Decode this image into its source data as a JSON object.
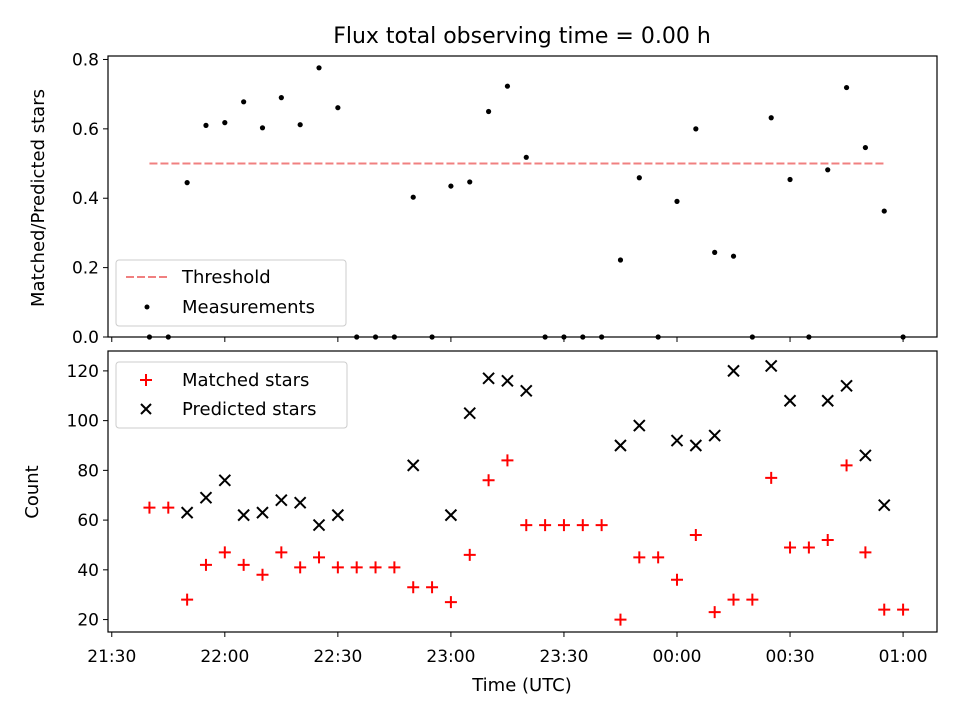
{
  "figure": {
    "title": "Flux total observing time = 0.00 h"
  },
  "colors": {
    "threshold": "#f08080",
    "measurements": "#000000",
    "matched": "#ff0000",
    "predicted": "#000000"
  },
  "chart_data": [
    {
      "type": "scatter",
      "title": "Flux total observing time = 0.00 h",
      "xlabel": "",
      "ylabel": "Matched/Predicted stars",
      "ylim": [
        0,
        0.81
      ],
      "yticks": [
        "0.0",
        "0.2",
        "0.4",
        "0.6",
        "0.8"
      ],
      "ytick_values": [
        0,
        0.2,
        0.4,
        0.6,
        0.8
      ],
      "legend_placement": "lower-left",
      "series": [
        {
          "name": "Threshold",
          "style": "dashed-line",
          "x": [
            "21:40",
            "00:55"
          ],
          "y": [
            0.5,
            0.5
          ]
        },
        {
          "name": "Measurements",
          "style": "dot",
          "x": [
            "21:40",
            "21:45",
            "21:50",
            "21:55",
            "22:00",
            "22:05",
            "22:10",
            "22:15",
            "22:20",
            "22:25",
            "22:30",
            "22:35",
            "22:40",
            "22:45",
            "22:50",
            "22:55",
            "23:00",
            "23:05",
            "23:10",
            "23:15",
            "23:20",
            "23:25",
            "23:30",
            "23:35",
            "23:40",
            "23:45",
            "23:50",
            "23:55",
            "00:00",
            "00:05",
            "00:10",
            "00:15",
            "00:20",
            "00:25",
            "00:30",
            "00:35",
            "00:40",
            "00:45",
            "00:50",
            "00:55",
            "01:00"
          ],
          "y": [
            0,
            0,
            0.445,
            0.61,
            0.618,
            0.678,
            0.603,
            0.69,
            0.612,
            0.776,
            0.661,
            0,
            0,
            0,
            0.403,
            0,
            0.435,
            0.447,
            0.65,
            0.723,
            0.518,
            0,
            0,
            0,
            0,
            0.222,
            0.459,
            0,
            0.391,
            0.6,
            0.244,
            0.233,
            0,
            0.632,
            0.454,
            0,
            0.482,
            0.719,
            0.546,
            0.363,
            0
          ]
        }
      ]
    },
    {
      "type": "scatter",
      "title": "",
      "xlabel": "Time (UTC)",
      "ylabel": "Count",
      "ylim": [
        15,
        128
      ],
      "yticks": [
        "20",
        "40",
        "60",
        "80",
        "100",
        "120"
      ],
      "ytick_values": [
        20,
        40,
        60,
        80,
        100,
        120
      ],
      "xlim": [
        "21:29",
        "01:09"
      ],
      "xticks": [
        "21:30",
        "22:00",
        "22:30",
        "23:00",
        "23:30",
        "00:00",
        "00:30",
        "01:00"
      ],
      "legend_placement": "upper-left",
      "series": [
        {
          "name": "Matched stars",
          "style": "plus",
          "x": [
            "21:40",
            "21:45",
            "21:50",
            "21:55",
            "22:00",
            "22:05",
            "22:10",
            "22:15",
            "22:20",
            "22:25",
            "22:30",
            "22:35",
            "22:40",
            "22:45",
            "22:50",
            "22:55",
            "23:00",
            "23:05",
            "23:10",
            "23:15",
            "23:20",
            "23:25",
            "23:30",
            "23:35",
            "23:40",
            "23:45",
            "23:50",
            "23:55",
            "00:00",
            "00:05",
            "00:10",
            "00:15",
            "00:20",
            "00:25",
            "00:30",
            "00:35",
            "00:40",
            "00:45",
            "00:50",
            "00:55",
            "01:00"
          ],
          "y": [
            65,
            65,
            28,
            42,
            47,
            42,
            38,
            47,
            41,
            45,
            41,
            41,
            41,
            41,
            33,
            33,
            27,
            46,
            76,
            84,
            58,
            58,
            58,
            58,
            58,
            20,
            45,
            45,
            36,
            54,
            23,
            28,
            28,
            77,
            49,
            49,
            52,
            82,
            47,
            24,
            24
          ]
        },
        {
          "name": "Predicted stars",
          "style": "cross",
          "x": [
            "21:50",
            "21:55",
            "22:00",
            "22:05",
            "22:10",
            "22:15",
            "22:20",
            "22:25",
            "22:30",
            "22:50",
            "23:00",
            "23:05",
            "23:10",
            "23:15",
            "23:20",
            "23:45",
            "23:50",
            "00:00",
            "00:05",
            "00:10",
            "00:15",
            "00:25",
            "00:30",
            "00:40",
            "00:45",
            "00:50",
            "00:55"
          ],
          "y": [
            63,
            69,
            76,
            62,
            63,
            68,
            67,
            58,
            62,
            82,
            62,
            103,
            117,
            116,
            112,
            90,
            98,
            92,
            90,
            94,
            120,
            122,
            108,
            108,
            114,
            86,
            66
          ]
        }
      ]
    }
  ]
}
